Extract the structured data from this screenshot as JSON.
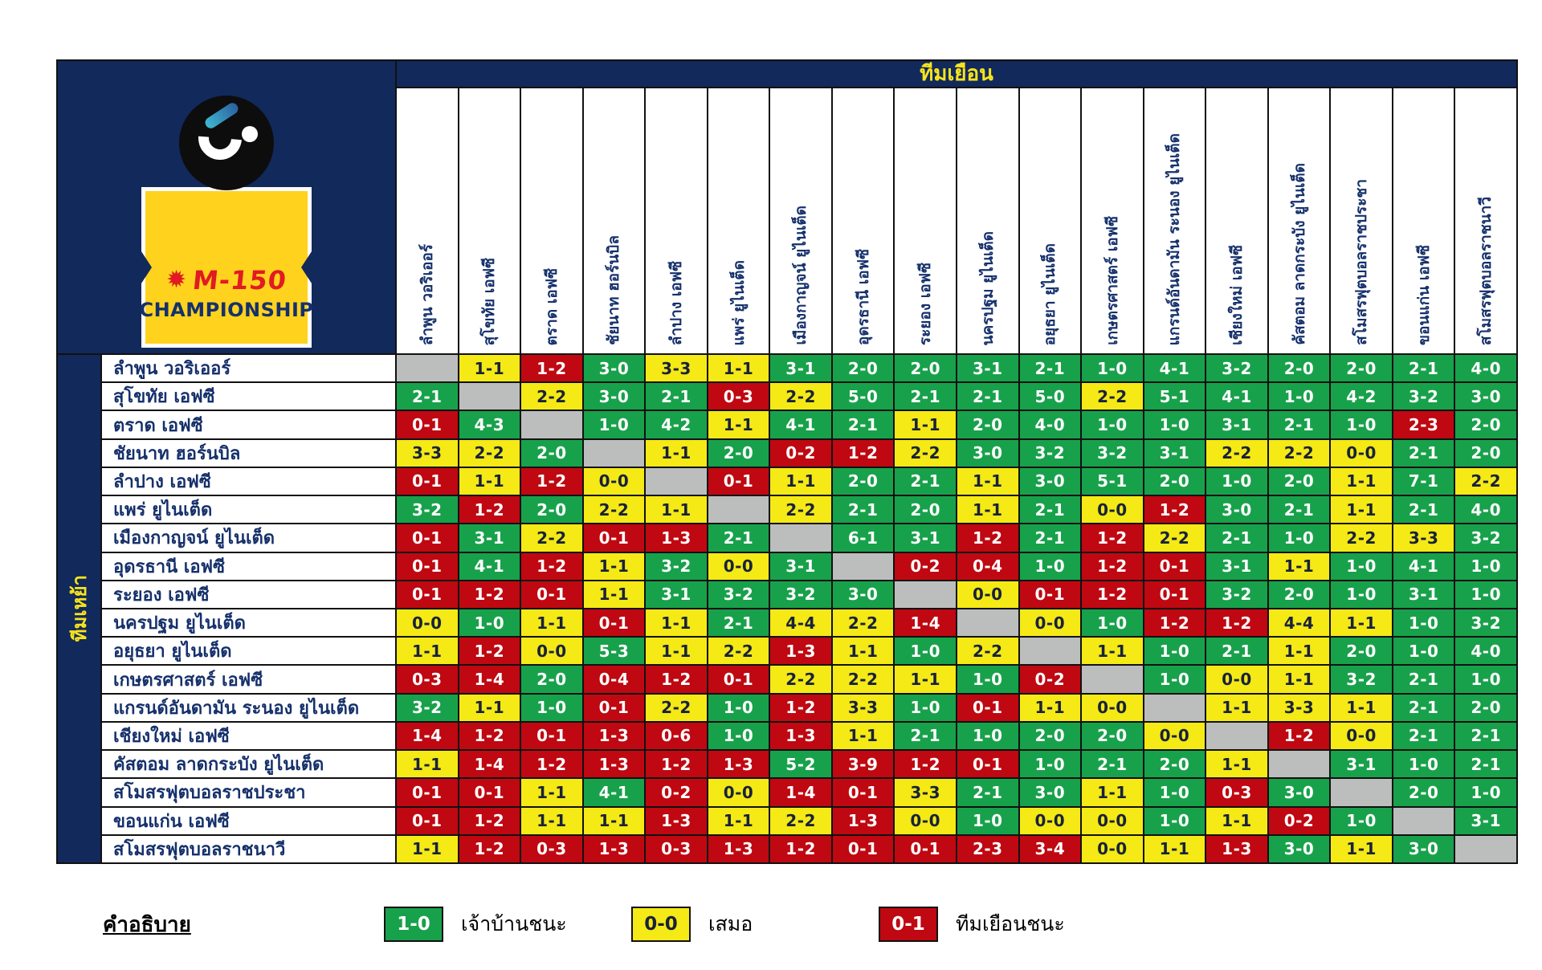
{
  "header": {
    "away_label": "ทีมเยือน",
    "home_label": "ทีมเหย้า"
  },
  "logo": {
    "star_icon": "✹",
    "m150": "M-150",
    "championship": "CHAMPIONSHIP"
  },
  "legend": {
    "title": "คำอธิบาย",
    "items": [
      {
        "score": "1-0",
        "label": "เจ้าบ้านชนะ",
        "type": "home_win"
      },
      {
        "score": "0-0",
        "label": "เสมอ",
        "type": "draw"
      },
      {
        "score": "0-1",
        "label": "ทีมเยือนชนะ",
        "type": "away_win"
      }
    ]
  },
  "colors": {
    "navy": "#12295b",
    "green": "#18a14b",
    "yellow": "#f5e916",
    "red": "#bf0811",
    "gray": "#bcbebd",
    "accent_yellow": "#f8e41c",
    "line": "#111111",
    "draw_text": "#18223a",
    "badge_yellow": "#ffd21e",
    "badge_red": "#e11b22",
    "badge_navy": "#15306b"
  },
  "chart_data": {
    "type": "table",
    "title": "M-150 Championship head-to-head results matrix (rows = home team, columns = away team)",
    "row_axis_label": "ทีมเหย้า",
    "col_axis_label": "ทีมเยือน",
    "cell_semantics": {
      "green": "home win",
      "yellow": "draw",
      "red": "away win",
      "gray": "same team (no match)"
    },
    "teams": [
      "ลำพูน วอริเออร์",
      "สุโขทัย เอฟซี",
      "ตราด เอฟซี",
      "ชัยนาท ฮอร์นบิล",
      "ลำปาง เอฟซี",
      "แพร่ ยูไนเต็ด",
      "เมืองกาญจน์ ยูไนเต็ด",
      "อุดรธานี เอฟซี",
      "ระยอง เอฟซี",
      "นครปฐม ยูไนเต็ด",
      "อยุธยา ยูไนเต็ด",
      "เกษตรศาสตร์ เอฟซี",
      "แกรนด์อันดามัน ระนอง ยูไนเต็ด",
      "เชียงใหม่ เอฟซี",
      "คัสตอม ลาดกระบัง ยูไนเต็ด",
      "สโมสรฟุตบอลราชประชา",
      "ขอนแก่น เอฟซี",
      "สโมสรฟุตบอลราชนาวี"
    ],
    "results": [
      [
        null,
        "1-1",
        "1-2",
        "3-0",
        "3-3",
        "1-1",
        "3-1",
        "2-0",
        "2-0",
        "3-1",
        "2-1",
        "1-0",
        "4-1",
        "3-2",
        "2-0",
        "2-0",
        "2-1",
        "4-0"
      ],
      [
        "2-1",
        null,
        "2-2",
        "3-0",
        "2-1",
        "0-3",
        "2-2",
        "5-0",
        "2-1",
        "2-1",
        "5-0",
        "2-2",
        "5-1",
        "4-1",
        "1-0",
        "4-2",
        "3-2",
        "3-0"
      ],
      [
        "0-1",
        "4-3",
        null,
        "1-0",
        "4-2",
        "1-1",
        "4-1",
        "2-1",
        "1-1",
        "2-0",
        "4-0",
        "1-0",
        "1-0",
        "3-1",
        "2-1",
        "1-0",
        "2-3",
        "2-0"
      ],
      [
        "3-3",
        "2-2",
        "2-0",
        null,
        "1-1",
        "2-0",
        "0-2",
        "1-2",
        "2-2",
        "3-0",
        "3-2",
        "3-2",
        "3-1",
        "2-2",
        "2-2",
        "0-0",
        "2-1",
        "2-0"
      ],
      [
        "0-1",
        "1-1",
        "1-2",
        "0-0",
        null,
        "0-1",
        "1-1",
        "2-0",
        "2-1",
        "1-1",
        "3-0",
        "5-1",
        "2-0",
        "1-0",
        "2-0",
        "1-1",
        "7-1",
        "2-2"
      ],
      [
        "3-2",
        "1-2",
        "2-0",
        "2-2",
        "1-1",
        null,
        "2-2",
        "2-1",
        "2-0",
        "1-1",
        "2-1",
        "0-0",
        "1-2",
        "3-0",
        "2-1",
        "1-1",
        "2-1",
        "4-0"
      ],
      [
        "0-1",
        "3-1",
        "2-2",
        "0-1",
        "1-3",
        "2-1",
        null,
        "6-1",
        "3-1",
        "1-2",
        "2-1",
        "1-2",
        "2-2",
        "2-1",
        "1-0",
        "2-2",
        "3-3",
        "3-2"
      ],
      [
        "0-1",
        "4-1",
        "1-2",
        "1-1",
        "3-2",
        "0-0",
        "3-1",
        null,
        "0-2",
        "0-4",
        "1-0",
        "1-2",
        "0-1",
        "3-1",
        "1-1",
        "1-0",
        "4-1",
        "1-0"
      ],
      [
        "0-1",
        "1-2",
        "0-1",
        "1-1",
        "3-1",
        "3-2",
        "3-2",
        "3-0",
        null,
        "0-0",
        "0-1",
        "1-2",
        "0-1",
        "3-2",
        "2-0",
        "1-0",
        "3-1",
        "1-0"
      ],
      [
        "0-0",
        "1-0",
        "1-1",
        "0-1",
        "1-1",
        "2-1",
        "4-4",
        "2-2",
        "1-4",
        null,
        "0-0",
        "1-0",
        "1-2",
        "1-2",
        "4-4",
        "1-1",
        "1-0",
        "3-2"
      ],
      [
        "1-1",
        "1-2",
        "0-0",
        "5-3",
        "1-1",
        "2-2",
        "1-3",
        "1-1",
        "1-0",
        "2-2",
        null,
        "1-1",
        "1-0",
        "2-1",
        "1-1",
        "2-0",
        "1-0",
        "4-0"
      ],
      [
        "0-3",
        "1-4",
        "2-0",
        "0-4",
        "1-2",
        "0-1",
        "2-2",
        "2-2",
        "1-1",
        "1-0",
        "0-2",
        null,
        "1-0",
        "0-0",
        "1-1",
        "3-2",
        "2-1",
        "1-0"
      ],
      [
        "3-2",
        "1-1",
        "1-0",
        "0-1",
        "2-2",
        "1-0",
        "1-2",
        "3-3",
        "1-0",
        "0-1",
        "1-1",
        "0-0",
        null,
        "1-1",
        "3-3",
        "1-1",
        "2-1",
        "2-0"
      ],
      [
        "1-4",
        "1-2",
        "0-1",
        "1-3",
        "0-6",
        "1-0",
        "1-3",
        "1-1",
        "2-1",
        "1-0",
        "2-0",
        "2-0",
        "0-0",
        null,
        "1-2",
        "0-0",
        "2-1",
        "2-1"
      ],
      [
        "1-1",
        "1-4",
        "1-2",
        "1-3",
        "1-2",
        "1-3",
        "5-2",
        "3-9",
        "1-2",
        "0-1",
        "1-0",
        "2-1",
        "2-0",
        "1-1",
        null,
        "3-1",
        "1-0",
        "2-1"
      ],
      [
        "0-1",
        "0-1",
        "1-1",
        "4-1",
        "0-2",
        "0-0",
        "1-4",
        "0-1",
        "3-3",
        "2-1",
        "3-0",
        "1-1",
        "1-0",
        "0-3",
        "3-0",
        null,
        "2-0",
        "1-0"
      ],
      [
        "0-1",
        "1-2",
        "1-1",
        "1-1",
        "1-3",
        "1-1",
        "2-2",
        "1-3",
        "0-0",
        "1-0",
        "0-0",
        "0-0",
        "1-0",
        "1-1",
        "0-2",
        "1-0",
        null,
        "3-1"
      ],
      [
        "1-1",
        "1-2",
        "0-3",
        "1-3",
        "0-3",
        "1-3",
        "1-2",
        "0-1",
        "0-1",
        "2-3",
        "3-4",
        "0-0",
        "1-1",
        "1-3",
        "3-0",
        "1-1",
        "3-0",
        null
      ]
    ]
  }
}
